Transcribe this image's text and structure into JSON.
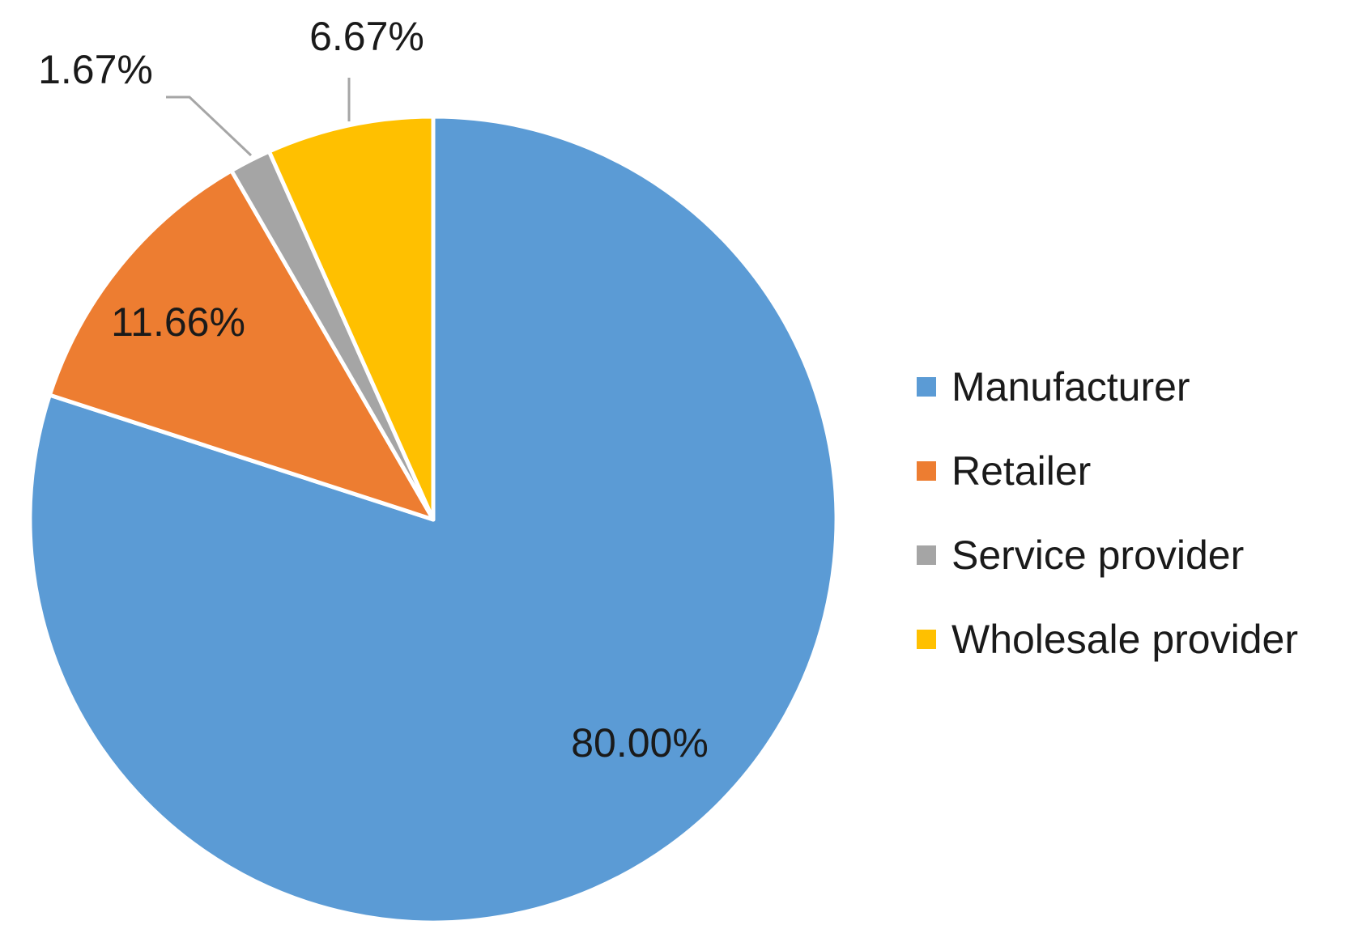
{
  "chart_data": {
    "type": "pie",
    "title": "",
    "categories": [
      "Manufacturer",
      "Retailer",
      "Service provider",
      "Wholesale provider"
    ],
    "values": [
      80.0,
      11.66,
      1.67,
      6.67
    ],
    "labels": [
      "80.00%",
      "11.66%",
      "1.67%",
      "6.67%"
    ],
    "colors": [
      "#5B9BD5",
      "#ED7D31",
      "#A5A5A5",
      "#FFC000"
    ],
    "start_angle": "12 o'clock",
    "direction": "clockwise",
    "legend": {
      "position": "right",
      "entries": [
        "Manufacturer",
        "Retailer",
        "Service provider",
        "Wholesale provider"
      ]
    }
  }
}
